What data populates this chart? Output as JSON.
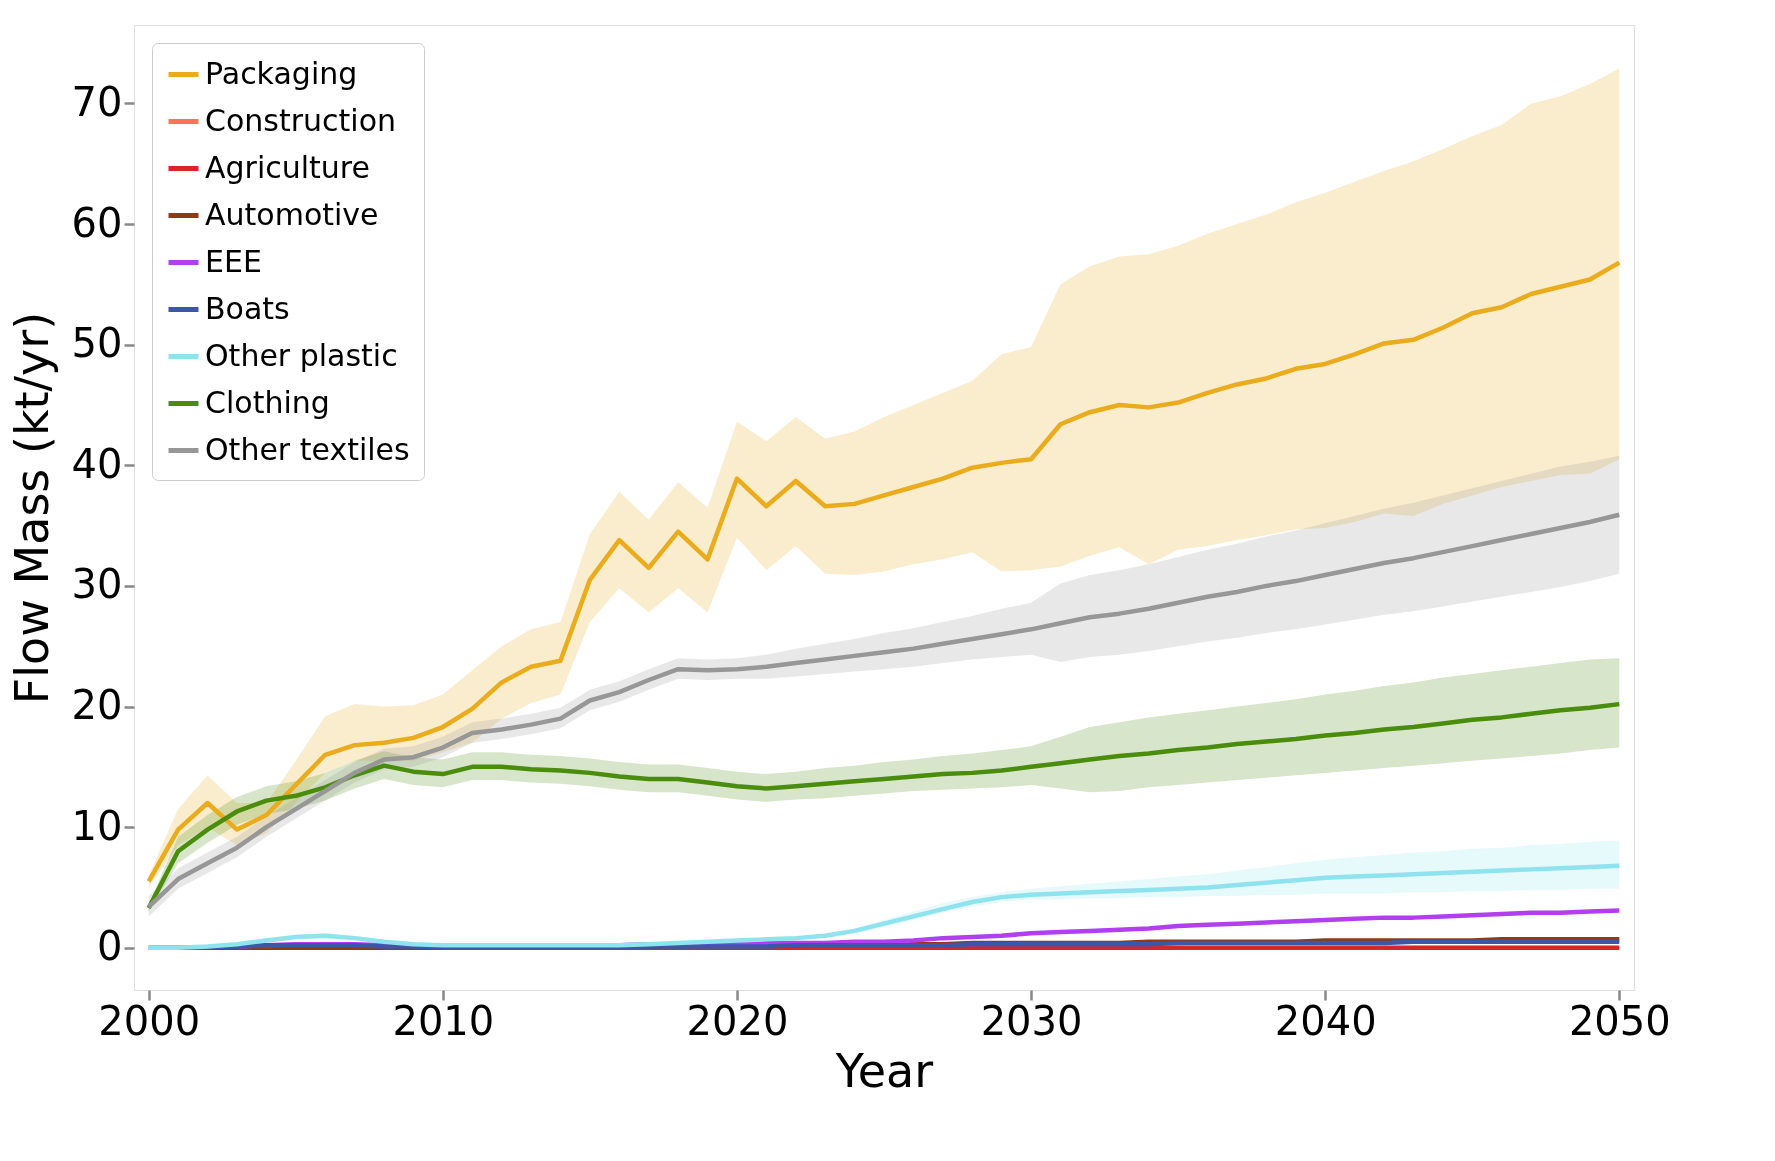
{
  "chart_data": {
    "type": "line",
    "xlabel": "Year",
    "ylabel": "Flow Mass (kt/yr)",
    "xlim": [
      1999.5,
      2050.5
    ],
    "ylim": [
      -3.5,
      76.5
    ],
    "xticks": [
      2000,
      2010,
      2020,
      2030,
      2040,
      2050
    ],
    "yticks": [
      0,
      10,
      20,
      30,
      40,
      50,
      60,
      70
    ],
    "legend": "top left",
    "grid": false,
    "x": [
      2000,
      2001,
      2002,
      2003,
      2004,
      2005,
      2006,
      2007,
      2008,
      2009,
      2010,
      2011,
      2012,
      2013,
      2014,
      2015,
      2016,
      2017,
      2018,
      2019,
      2020,
      2021,
      2022,
      2023,
      2024,
      2025,
      2026,
      2027,
      2028,
      2029,
      2030,
      2031,
      2032,
      2033,
      2034,
      2035,
      2036,
      2037,
      2038,
      2039,
      2040,
      2041,
      2042,
      2043,
      2044,
      2045,
      2046,
      2047,
      2048,
      2049,
      2050
    ],
    "series": [
      {
        "name": "Packaging",
        "color": "#eaac1c",
        "values": [
          5.5,
          9.8,
          12,
          9.8,
          11,
          13.5,
          16,
          16.8,
          17,
          17.4,
          18.3,
          19.8,
          22,
          23.3,
          23.8,
          30.5,
          33.8,
          31.5,
          34.5,
          32.2,
          38.9,
          36.6,
          38.7,
          36.6,
          36.8,
          37.5,
          38.2,
          38.9,
          39.8,
          40.2,
          40.5,
          43.4,
          44.4,
          45,
          44.8,
          45.2,
          46,
          46.7,
          47.2,
          48,
          48.4,
          49.2,
          50.1,
          50.4,
          51.4,
          52.6,
          53.1,
          54.2,
          54.8,
          55.4,
          56.8
        ],
        "upper": [
          6,
          11.5,
          14.3,
          12,
          12,
          15.5,
          19.2,
          20.2,
          20,
          20.1,
          21,
          23,
          25,
          26.4,
          27,
          34.3,
          37.8,
          35.5,
          38.6,
          36.5,
          43.6,
          42,
          44,
          42.2,
          42.8,
          44,
          45,
          46,
          47,
          49.2,
          49.8,
          55,
          56.5,
          57.3,
          57.5,
          58.2,
          59.2,
          60,
          60.8,
          61.8,
          62.6,
          63.5,
          64.4,
          65.2,
          66.2,
          67.3,
          68.2,
          70,
          70.6,
          71.6,
          72.9
        ],
        "lower": [
          5,
          8.5,
          10,
          8.5,
          9.5,
          12,
          14.5,
          15.5,
          15.5,
          15.5,
          16.2,
          17,
          19,
          20.3,
          21,
          27,
          29.8,
          27.8,
          29.8,
          27.8,
          34,
          31.3,
          33.3,
          31,
          30.9,
          31.2,
          31.8,
          32.2,
          32.8,
          31.2,
          31.3,
          31.6,
          32.5,
          33.2,
          31.8,
          33,
          33.3,
          33.8,
          34.2,
          34.7,
          34.8,
          35.3,
          36,
          35.8,
          36.8,
          37.5,
          38.2,
          38.7,
          39.2,
          39.3,
          40.5
        ]
      },
      {
        "name": "Construction",
        "color": "#fb7456",
        "values": [
          null,
          null,
          null,
          null,
          null,
          null,
          null,
          null,
          null,
          null,
          null,
          null,
          null,
          null,
          null,
          null,
          null,
          null,
          null,
          null,
          null,
          null,
          null,
          null,
          null,
          null,
          null,
          null,
          null,
          null,
          null,
          null,
          null,
          null,
          null,
          null,
          null,
          null,
          null,
          null,
          null,
          null,
          null,
          null,
          null,
          null,
          null,
          null,
          null,
          null,
          null
        ]
      },
      {
        "name": "Agriculture",
        "color": "#d62728",
        "values": [
          null,
          null,
          null,
          null,
          null,
          null,
          null,
          null,
          null,
          null,
          null,
          null,
          null,
          null,
          null,
          0,
          0,
          0,
          0,
          0,
          0,
          0,
          0,
          0,
          0,
          0,
          0,
          0,
          0,
          0,
          0,
          0,
          0,
          0,
          0,
          0,
          0,
          0,
          0,
          0,
          0,
          0,
          0,
          0,
          0,
          0,
          0,
          0,
          0,
          0,
          0
        ]
      },
      {
        "name": "Automotive",
        "color": "#8c3a17",
        "values": [
          null,
          null,
          0,
          0,
          0,
          0,
          0,
          0,
          0,
          0,
          0,
          0,
          0,
          0,
          0,
          0,
          0.1,
          0.1,
          0.1,
          0.2,
          0.2,
          0.2,
          0.2,
          0.3,
          0.3,
          0.3,
          0.3,
          0.3,
          0.4,
          0.4,
          0.4,
          0.4,
          0.4,
          0.4,
          0.5,
          0.5,
          0.5,
          0.5,
          0.5,
          0.5,
          0.6,
          0.6,
          0.6,
          0.6,
          0.6,
          0.6,
          0.7,
          0.7,
          0.7,
          0.7,
          0.7
        ]
      },
      {
        "name": "EEE",
        "color": "#b13ff0",
        "values": [
          null,
          null,
          null,
          0.1,
          0.2,
          0.3,
          0.3,
          0.3,
          0.2,
          0.2,
          0.2,
          0.2,
          0.2,
          0.2,
          0.2,
          0.2,
          0.2,
          0.3,
          0.3,
          0.3,
          0.4,
          0.4,
          0.4,
          0.4,
          0.5,
          0.5,
          0.6,
          0.8,
          0.9,
          1,
          1.2,
          1.3,
          1.4,
          1.5,
          1.6,
          1.8,
          1.9,
          2,
          2.1,
          2.2,
          2.3,
          2.4,
          2.5,
          2.5,
          2.6,
          2.7,
          2.8,
          2.9,
          2.9,
          3,
          3.1
        ]
      },
      {
        "name": "Boats",
        "color": "#3c57a8",
        "values": [
          0,
          0,
          0,
          0.1,
          0.2,
          0.2,
          0.2,
          0.2,
          0.1,
          0.1,
          0,
          0,
          0,
          0,
          0,
          0,
          0,
          0.1,
          0.1,
          0.1,
          0.1,
          0.1,
          0.2,
          0.2,
          0.2,
          0.2,
          0.2,
          0.2,
          0.3,
          0.3,
          0.3,
          0.3,
          0.3,
          0.3,
          0.3,
          0.4,
          0.4,
          0.4,
          0.4,
          0.4,
          0.4,
          0.4,
          0.4,
          0.5,
          0.5,
          0.5,
          0.5,
          0.5,
          0.5,
          0.5,
          0.5
        ]
      },
      {
        "name": "Other plastic",
        "color": "#8ee3ee",
        "values": [
          0,
          0,
          0.1,
          0.3,
          0.6,
          0.9,
          1,
          0.8,
          0.5,
          0.3,
          0.2,
          0.2,
          0.2,
          0.2,
          0.2,
          0.2,
          0.2,
          0.3,
          0.4,
          0.5,
          0.6,
          0.7,
          0.8,
          1,
          1.4,
          2,
          2.6,
          3.2,
          3.8,
          4.2,
          4.4,
          4.5,
          4.6,
          4.7,
          4.8,
          4.9,
          5,
          5.2,
          5.4,
          5.6,
          5.8,
          5.9,
          6,
          6.1,
          6.2,
          6.3,
          6.4,
          6.5,
          6.6,
          6.7,
          6.8
        ],
        "upper": [
          0.1,
          0.1,
          0.2,
          0.4,
          0.8,
          1.1,
          1.2,
          1,
          0.6,
          0.4,
          0.3,
          0.3,
          0.3,
          0.3,
          0.3,
          0.3,
          0.3,
          0.4,
          0.5,
          0.6,
          0.7,
          0.8,
          0.9,
          1.1,
          1.6,
          2.3,
          3,
          3.7,
          4.2,
          4.6,
          4.9,
          5.1,
          5.3,
          5.5,
          5.7,
          5.9,
          6.1,
          6.4,
          6.7,
          7,
          7.3,
          7.5,
          7.7,
          7.9,
          8,
          8.2,
          8.3,
          8.5,
          8.6,
          8.8,
          8.9
        ],
        "lower": [
          0,
          0,
          0,
          0.2,
          0.4,
          0.7,
          0.8,
          0.6,
          0.4,
          0.2,
          0.1,
          0.1,
          0.1,
          0.1,
          0.1,
          0.1,
          0.1,
          0.2,
          0.3,
          0.4,
          0.5,
          0.6,
          0.7,
          0.9,
          1.2,
          1.7,
          2.3,
          2.9,
          3.4,
          3.8,
          4,
          4,
          4.1,
          4.1,
          4.2,
          4.2,
          4.3,
          4.3,
          4.4,
          4.4,
          4.5,
          4.5,
          4.5,
          4.6,
          4.6,
          4.7,
          4.7,
          4.8,
          4.8,
          4.9,
          4.9
        ]
      },
      {
        "name": "Clothing",
        "color": "#4a8c0c",
        "values": [
          3.3,
          8,
          9.8,
          11.3,
          12.2,
          12.6,
          13.3,
          14.3,
          15.1,
          14.6,
          14.4,
          15,
          15,
          14.8,
          14.7,
          14.5,
          14.2,
          14,
          14,
          13.7,
          13.4,
          13.2,
          13.4,
          13.6,
          13.8,
          14,
          14.2,
          14.4,
          14.5,
          14.7,
          15,
          15.3,
          15.6,
          15.9,
          16.1,
          16.4,
          16.6,
          16.9,
          17.1,
          17.3,
          17.6,
          17.8,
          18.1,
          18.3,
          18.6,
          18.9,
          19.1,
          19.4,
          19.7,
          19.9,
          20.2
        ],
        "upper": [
          3.6,
          9.2,
          11,
          12.5,
          13.4,
          13.8,
          14.5,
          15.5,
          16.3,
          15.8,
          15.6,
          16.2,
          16.2,
          16,
          15.9,
          15.7,
          15.4,
          15.2,
          15.2,
          14.9,
          14.6,
          14.4,
          14.6,
          14.9,
          15.1,
          15.4,
          15.6,
          15.9,
          16.1,
          16.4,
          16.7,
          17.5,
          18.3,
          18.7,
          19.1,
          19.4,
          19.7,
          20,
          20.3,
          20.6,
          21,
          21.3,
          21.7,
          22,
          22.4,
          22.7,
          23,
          23.3,
          23.6,
          23.9,
          24
        ],
        "lower": [
          3,
          7,
          8.7,
          10.2,
          11.1,
          11.5,
          12.2,
          13.2,
          14,
          13.5,
          13.3,
          13.9,
          13.9,
          13.7,
          13.6,
          13.4,
          13.1,
          12.9,
          12.9,
          12.6,
          12.3,
          12.1,
          12.3,
          12.4,
          12.6,
          12.8,
          13,
          13.1,
          13.2,
          13.3,
          13.5,
          13.2,
          12.9,
          13,
          13.3,
          13.5,
          13.7,
          13.9,
          14.1,
          14.3,
          14.5,
          14.7,
          14.9,
          15.1,
          15.3,
          15.5,
          15.7,
          15.9,
          16.1,
          16.4,
          16.6
        ]
      },
      {
        "name": "Other textiles",
        "color": "#979797",
        "values": [
          3.4,
          5.7,
          7,
          8.3,
          10,
          11.5,
          13,
          14.5,
          15.6,
          15.8,
          16.6,
          17.8,
          18.1,
          18.5,
          19,
          20.5,
          21.2,
          22.2,
          23.1,
          23,
          23.1,
          23.3,
          23.6,
          23.9,
          24.2,
          24.5,
          24.8,
          25.2,
          25.6,
          26,
          26.4,
          26.9,
          27.4,
          27.7,
          28.1,
          28.6,
          29.1,
          29.5,
          30,
          30.4,
          30.9,
          31.4,
          31.9,
          32.3,
          32.8,
          33.3,
          33.8,
          34.3,
          34.8,
          35.3,
          35.9
        ],
        "upper": [
          4.3,
          6.6,
          7.9,
          9.2,
          10.9,
          12.4,
          13.9,
          15.4,
          16.5,
          16.7,
          17.5,
          18.7,
          19,
          19.4,
          19.9,
          21.4,
          22.1,
          23.1,
          24,
          23.9,
          24,
          24.3,
          24.8,
          25.2,
          25.6,
          26.1,
          26.5,
          27,
          27.5,
          28.1,
          28.6,
          30.2,
          30.9,
          31.3,
          31.8,
          32.4,
          33,
          33.5,
          34.1,
          34.6,
          35.2,
          35.8,
          36.4,
          36.9,
          37.5,
          38.1,
          38.7,
          39.3,
          39.9,
          40.3,
          40.8
        ],
        "lower": [
          2.6,
          4.9,
          6.2,
          7.5,
          9.2,
          10.7,
          12.2,
          13.7,
          14.8,
          15,
          15.8,
          17,
          17.3,
          17.7,
          18.2,
          19.7,
          20.4,
          21.4,
          22.3,
          22.2,
          22.3,
          22.3,
          22.5,
          22.7,
          22.9,
          23.1,
          23.3,
          23.6,
          23.9,
          24.1,
          24.3,
          23.7,
          24.1,
          24.3,
          24.6,
          25,
          25.4,
          25.7,
          26.1,
          26.4,
          26.8,
          27.2,
          27.6,
          27.9,
          28.3,
          28.7,
          29.1,
          29.5,
          29.9,
          30.4,
          31
        ]
      }
    ]
  }
}
